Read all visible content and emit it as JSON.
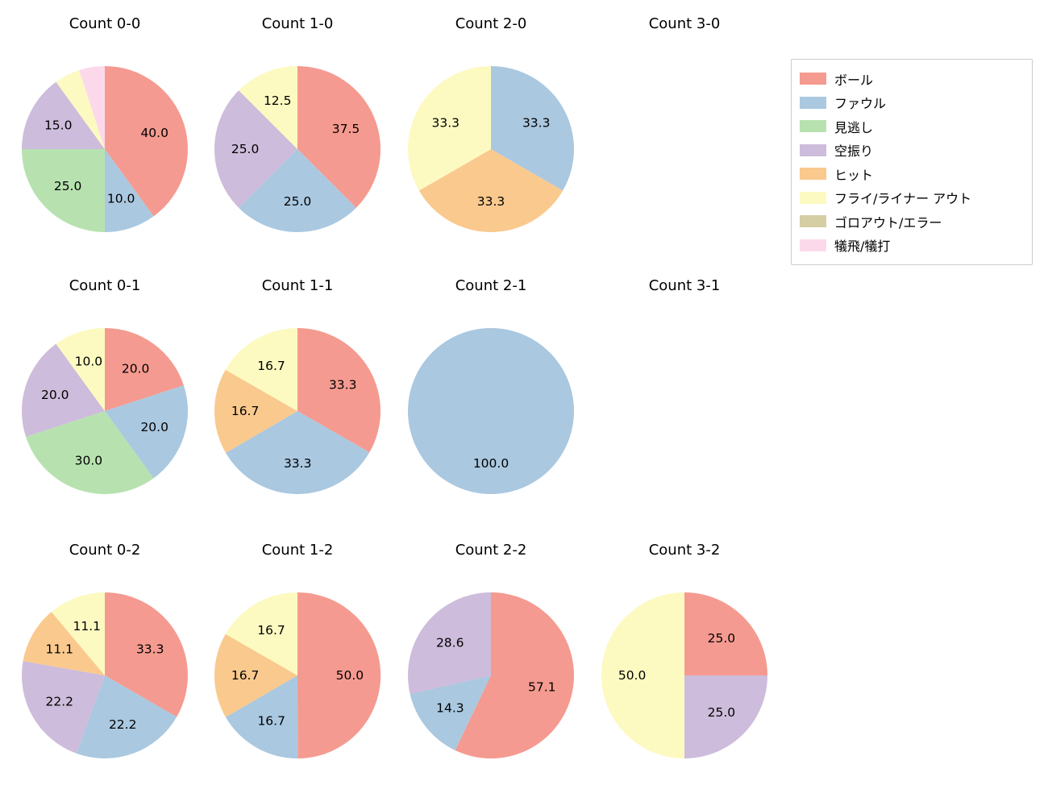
{
  "figure": {
    "background": "#ffffff",
    "text_color": "#000000"
  },
  "legend": {
    "position": "top-right",
    "border_color": "#cccccc",
    "items": [
      {
        "label": "ボール",
        "color": "#f59a90"
      },
      {
        "label": "ファウル",
        "color": "#aac8e0"
      },
      {
        "label": "見逃し",
        "color": "#b7e2b0"
      },
      {
        "label": "空振り",
        "color": "#cdbcdb"
      },
      {
        "label": "ヒット",
        "color": "#fac98e"
      },
      {
        "label": "フライ/ライナー アウト",
        "color": "#fcfac1"
      },
      {
        "label": "ゴロアウト/エラー",
        "color": "#d5cda3"
      },
      {
        "label": "犠飛/犠打",
        "color": "#fbd9eb"
      }
    ]
  },
  "chart_data": [
    {
      "type": "pie",
      "title": "Count 0-0",
      "row": 0,
      "col": 0,
      "start_angle": 90,
      "direction": "clockwise",
      "slices": [
        {
          "category": "ボール",
          "value": 40.0,
          "label": "40.0"
        },
        {
          "category": "ファウル",
          "value": 10.0,
          "label": "10.0"
        },
        {
          "category": "見逃し",
          "value": 25.0,
          "label": "25.0"
        },
        {
          "category": "空振り",
          "value": 15.0,
          "label": "15.0"
        },
        {
          "category": "フライ/ライナー アウト",
          "value": 5.0,
          "label": ""
        },
        {
          "category": "犠飛/犠打",
          "value": 5.0,
          "label": ""
        }
      ]
    },
    {
      "type": "pie",
      "title": "Count 1-0",
      "row": 0,
      "col": 1,
      "start_angle": 90,
      "direction": "clockwise",
      "slices": [
        {
          "category": "ボール",
          "value": 37.5,
          "label": "37.5"
        },
        {
          "category": "ファウル",
          "value": 25.0,
          "label": "25.0"
        },
        {
          "category": "空振り",
          "value": 25.0,
          "label": "25.0"
        },
        {
          "category": "フライ/ライナー アウト",
          "value": 12.5,
          "label": "12.5"
        }
      ]
    },
    {
      "type": "pie",
      "title": "Count 2-0",
      "row": 0,
      "col": 2,
      "start_angle": 90,
      "direction": "clockwise",
      "slices": [
        {
          "category": "ファウル",
          "value": 33.3,
          "label": "33.3"
        },
        {
          "category": "ヒット",
          "value": 33.3,
          "label": "33.3"
        },
        {
          "category": "フライ/ライナー アウト",
          "value": 33.3,
          "label": "33.3"
        }
      ]
    },
    {
      "type": "pie",
      "title": "Count 3-0",
      "row": 0,
      "col": 3,
      "start_angle": 90,
      "direction": "clockwise",
      "slices": []
    },
    {
      "type": "pie",
      "title": "Count 0-1",
      "row": 1,
      "col": 0,
      "start_angle": 90,
      "direction": "clockwise",
      "slices": [
        {
          "category": "ボール",
          "value": 20.0,
          "label": "20.0"
        },
        {
          "category": "ファウル",
          "value": 20.0,
          "label": "20.0"
        },
        {
          "category": "見逃し",
          "value": 30.0,
          "label": "30.0"
        },
        {
          "category": "空振り",
          "value": 20.0,
          "label": "20.0"
        },
        {
          "category": "フライ/ライナー アウト",
          "value": 10.0,
          "label": "10.0"
        }
      ]
    },
    {
      "type": "pie",
      "title": "Count 1-1",
      "row": 1,
      "col": 1,
      "start_angle": 90,
      "direction": "clockwise",
      "slices": [
        {
          "category": "ボール",
          "value": 33.3,
          "label": "33.3"
        },
        {
          "category": "ファウル",
          "value": 33.3,
          "label": "33.3"
        },
        {
          "category": "ヒット",
          "value": 16.7,
          "label": "16.7"
        },
        {
          "category": "フライ/ライナー アウト",
          "value": 16.7,
          "label": "16.7"
        }
      ]
    },
    {
      "type": "pie",
      "title": "Count 2-1",
      "row": 1,
      "col": 2,
      "start_angle": 90,
      "direction": "clockwise",
      "slices": [
        {
          "category": "ファウル",
          "value": 100.0,
          "label": "100.0"
        }
      ]
    },
    {
      "type": "pie",
      "title": "Count 3-1",
      "row": 1,
      "col": 3,
      "start_angle": 90,
      "direction": "clockwise",
      "slices": []
    },
    {
      "type": "pie",
      "title": "Count 0-2",
      "row": 2,
      "col": 0,
      "start_angle": 90,
      "direction": "clockwise",
      "slices": [
        {
          "category": "ボール",
          "value": 33.3,
          "label": "33.3"
        },
        {
          "category": "ファウル",
          "value": 22.2,
          "label": "22.2"
        },
        {
          "category": "空振り",
          "value": 22.2,
          "label": "22.2"
        },
        {
          "category": "ヒット",
          "value": 11.1,
          "label": "11.1"
        },
        {
          "category": "フライ/ライナー アウト",
          "value": 11.1,
          "label": "11.1"
        }
      ]
    },
    {
      "type": "pie",
      "title": "Count 1-2",
      "row": 2,
      "col": 1,
      "start_angle": 90,
      "direction": "clockwise",
      "slices": [
        {
          "category": "ボール",
          "value": 50.0,
          "label": "50.0"
        },
        {
          "category": "ファウル",
          "value": 16.7,
          "label": "16.7"
        },
        {
          "category": "ヒット",
          "value": 16.7,
          "label": "16.7"
        },
        {
          "category": "フライ/ライナー アウト",
          "value": 16.7,
          "label": "16.7"
        }
      ]
    },
    {
      "type": "pie",
      "title": "Count 2-2",
      "row": 2,
      "col": 2,
      "start_angle": 90,
      "direction": "clockwise",
      "slices": [
        {
          "category": "ボール",
          "value": 57.1,
          "label": "57.1"
        },
        {
          "category": "ファウル",
          "value": 14.3,
          "label": "14.3"
        },
        {
          "category": "空振り",
          "value": 28.6,
          "label": "28.6"
        }
      ]
    },
    {
      "type": "pie",
      "title": "Count 3-2",
      "row": 2,
      "col": 3,
      "start_angle": 90,
      "direction": "clockwise",
      "slices": [
        {
          "category": "ボール",
          "value": 25.0,
          "label": "25.0"
        },
        {
          "category": "空振り",
          "value": 25.0,
          "label": "25.0"
        },
        {
          "category": "フライ/ライナー アウト",
          "value": 50.0,
          "label": "50.0"
        }
      ]
    }
  ]
}
